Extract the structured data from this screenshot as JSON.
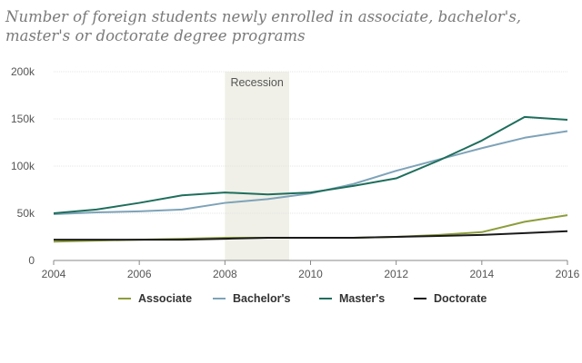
{
  "chart_data": {
    "type": "line",
    "title": "Number of foreign students newly enrolled in associate, bachelor's, master's or doctorate degree programs",
    "x": [
      2004,
      2005,
      2006,
      2007,
      2008,
      2009,
      2010,
      2011,
      2012,
      2013,
      2014,
      2015,
      2016
    ],
    "series": [
      {
        "name": "Associate",
        "color": "#8c9d3b",
        "values": [
          20000,
          21000,
          22000,
          23000,
          24000,
          24000,
          24000,
          24000,
          25000,
          27000,
          30000,
          41000,
          48000
        ]
      },
      {
        "name": "Bachelor's",
        "color": "#7ea3b8",
        "values": [
          49000,
          51000,
          52000,
          54000,
          61000,
          65000,
          71000,
          81000,
          95000,
          107000,
          119000,
          130000,
          137000
        ]
      },
      {
        "name": "Master's",
        "color": "#1e6e5c",
        "values": [
          50000,
          54000,
          61000,
          69000,
          72000,
          70000,
          72000,
          79000,
          87000,
          106000,
          127000,
          152000,
          149000
        ]
      },
      {
        "name": "Doctorate",
        "color": "#1a1a1a",
        "values": [
          22000,
          22000,
          22000,
          22000,
          23000,
          24000,
          24000,
          24000,
          25000,
          26000,
          27000,
          29000,
          31000
        ]
      }
    ],
    "xlim": [
      2004,
      2016
    ],
    "ylim": [
      0,
      200000
    ],
    "x_ticks": [
      "2004",
      "2006",
      "2008",
      "2010",
      "2012",
      "2014",
      "2016"
    ],
    "y_ticks": [
      "0",
      "50k",
      "100k",
      "150k",
      "200k"
    ],
    "annotation": {
      "label": "Recession",
      "x_start": 2008,
      "x_end": 2009.5,
      "color": "#f0f0e8"
    },
    "grid": true,
    "legend_position": "bottom"
  }
}
